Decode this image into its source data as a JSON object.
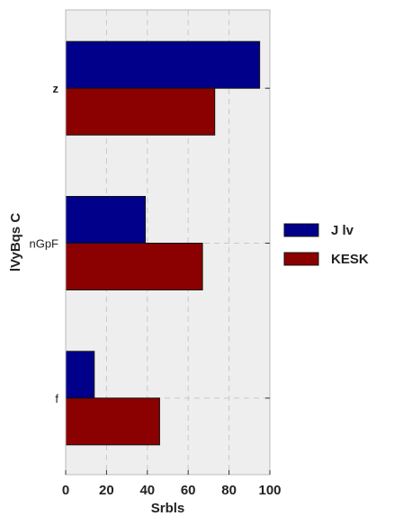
{
  "chart_data": {
    "type": "bar",
    "orientation": "horizontal",
    "categories": [
      "z",
      "nGpF",
      "f"
    ],
    "series": [
      {
        "name": "J lv",
        "values": [
          95,
          39,
          14
        ],
        "color": "#00008b"
      },
      {
        "name": "KESK",
        "values": [
          73,
          67,
          46
        ],
        "color": "#8b0000"
      }
    ],
    "xlabel": "Srbls",
    "ylabel": "lVyBqs  C",
    "xlim": [
      0,
      100
    ],
    "xticks": [
      "0",
      "20",
      "40",
      "60",
      "80",
      "100"
    ],
    "grid": true,
    "legend_position": "right",
    "background": "#eeeeee"
  }
}
